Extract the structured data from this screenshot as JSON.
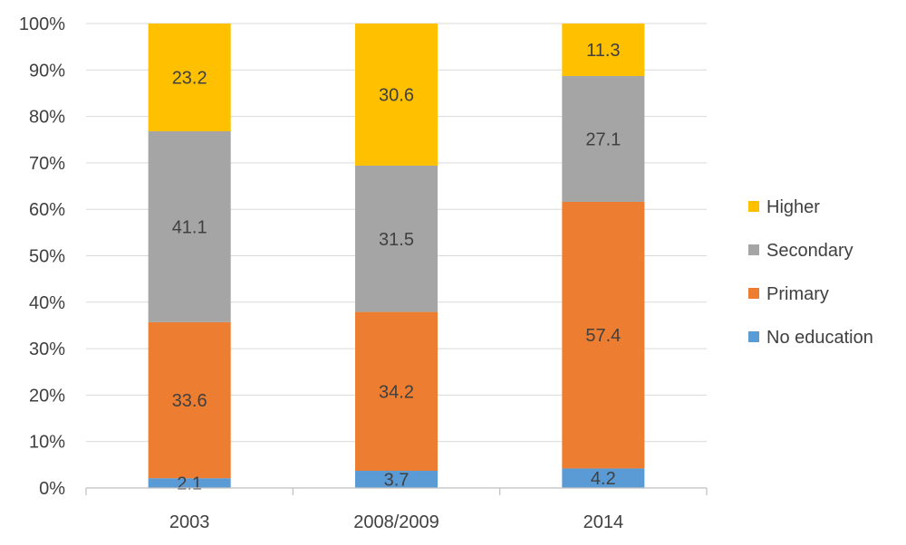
{
  "chart_data": {
    "type": "bar",
    "stacked": true,
    "percent_stacked": true,
    "categories": [
      "2003",
      "2008/2009",
      "2014"
    ],
    "series": [
      {
        "name": "No education",
        "values": [
          2.1,
          3.7,
          4.2
        ],
        "color": "#5B9BD5"
      },
      {
        "name": "Primary",
        "values": [
          33.6,
          34.2,
          57.4
        ],
        "color": "#ED7D31"
      },
      {
        "name": "Secondary",
        "values": [
          41.1,
          31.5,
          27.1
        ],
        "color": "#A5A5A5"
      },
      {
        "name": "Higher",
        "values": [
          23.2,
          30.6,
          11.3
        ],
        "color": "#FFC000"
      }
    ],
    "ylim": [
      0,
      100
    ],
    "yticks": [
      "0%",
      "10%",
      "20%",
      "30%",
      "40%",
      "50%",
      "60%",
      "70%",
      "80%",
      "90%",
      "100%"
    ],
    "grid": true,
    "legend_position": "right",
    "legend_order": [
      "Higher",
      "Secondary",
      "Primary",
      "No education"
    ],
    "title": "",
    "xlabel": "",
    "ylabel": ""
  },
  "colors": {
    "grid": "#D9D9D9",
    "axis": "#BFBFBF",
    "text": "#404040"
  }
}
